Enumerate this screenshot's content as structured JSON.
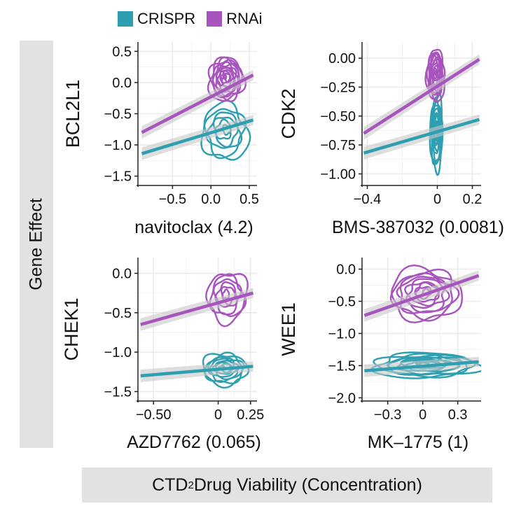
{
  "figure": {
    "y_strip_label": "Gene Effect",
    "x_strip_label_prefix": "CTD",
    "x_strip_label_sup": "2",
    "x_strip_label_suffix": " Drug Viability (Concentration)"
  },
  "legend": [
    {
      "name": "CRISPR",
      "color": "#2e9fb0"
    },
    {
      "name": "RNAi",
      "color": "#a755bd"
    }
  ],
  "colors": {
    "crispr": "#2e9fb0",
    "rnai": "#a755bd",
    "grid": "#ebebeb",
    "band": "#c8c8c8"
  },
  "chart_data": [
    {
      "type": "density-contour",
      "ylabel": "BCL2L1",
      "xlabel": "navitoclax (4.2)",
      "xlim": [
        -0.95,
        0.6
      ],
      "ylim": [
        -1.65,
        0.65
      ],
      "xticks": [
        -0.5,
        0.0,
        0.5
      ],
      "xtick_labels": [
        "-0.5",
        "0.0",
        "0.5"
      ],
      "yticks": [
        -1.5,
        -1.0,
        -0.5,
        0.0,
        0.5
      ],
      "ytick_labels": [
        "-1.5",
        "-1.0",
        "-0.5",
        "0.0",
        "0.5"
      ],
      "series": [
        {
          "name": "CRISPR",
          "center": [
            0.18,
            -0.8
          ],
          "spread": [
            0.3,
            0.45
          ],
          "levels": 6,
          "fit": {
            "x": [
              -0.9,
              0.55
            ],
            "y": [
              -1.14,
              -0.6
            ]
          }
        },
        {
          "name": "RNAi",
          "center": [
            0.2,
            0.05
          ],
          "spread": [
            0.22,
            0.35
          ],
          "levels": 11,
          "fit": {
            "x": [
              -0.9,
              0.55
            ],
            "y": [
              -0.8,
              0.12
            ]
          }
        }
      ]
    },
    {
      "type": "density-contour",
      "ylabel": "CDK2",
      "xlabel": "BMS-387032 (0.0081)",
      "xlim": [
        -0.43,
        0.25
      ],
      "ylim": [
        -1.1,
        0.14
      ],
      "xticks": [
        -0.4,
        0.0,
        0.2
      ],
      "xtick_labels": [
        "-0.4",
        "0",
        "0.2"
      ],
      "yticks": [
        -1.0,
        -0.75,
        -0.5,
        -0.25,
        0.0
      ],
      "ytick_labels": [
        "-1.00",
        "-0.75",
        "-0.50",
        "-0.25",
        "0.00"
      ],
      "series": [
        {
          "name": "CRISPR",
          "center": [
            -0.005,
            -0.65
          ],
          "spread": [
            0.035,
            0.32
          ],
          "levels": 8,
          "fit": {
            "x": [
              -0.42,
              0.24
            ],
            "y": [
              -0.82,
              -0.53
            ]
          }
        },
        {
          "name": "RNAi",
          "center": [
            -0.01,
            -0.15
          ],
          "spread": [
            0.05,
            0.22
          ],
          "levels": 10,
          "fit": {
            "x": [
              -0.42,
              0.24
            ],
            "y": [
              -0.65,
              -0.01
            ]
          }
        }
      ]
    },
    {
      "type": "density-contour",
      "ylabel": "CHEK1",
      "xlabel": "AZD7762 (0.065)",
      "xlim": [
        -0.62,
        0.3
      ],
      "ylim": [
        -1.62,
        0.2
      ],
      "xticks": [
        -0.5,
        0.0,
        0.25
      ],
      "xtick_labels": [
        "-0.50",
        "0",
        "0.25"
      ],
      "yticks": [
        -1.5,
        -1.0,
        -0.5,
        0.0
      ],
      "ytick_labels": [
        "-1.5",
        "-1.0",
        "-0.5",
        "0.0"
      ],
      "series": [
        {
          "name": "CRISPR",
          "center": [
            0.05,
            -1.22
          ],
          "spread": [
            0.17,
            0.2
          ],
          "levels": 8,
          "fit": {
            "x": [
              -0.6,
              0.27
            ],
            "y": [
              -1.3,
              -1.18
            ]
          }
        },
        {
          "name": "RNAi",
          "center": [
            0.07,
            -0.3
          ],
          "spread": [
            0.15,
            0.32
          ],
          "levels": 6,
          "fit": {
            "x": [
              -0.6,
              0.27
            ],
            "y": [
              -0.65,
              -0.25
            ]
          }
        }
      ]
    },
    {
      "type": "density-contour",
      "ylabel": "WEE1",
      "xlabel": "MK–1775 (1)",
      "xlim": [
        -0.52,
        0.5
      ],
      "ylim": [
        -2.05,
        0.18
      ],
      "xticks": [
        -0.3,
        0.0,
        0.3
      ],
      "xtick_labels": [
        "-0.3",
        "0",
        "0.3"
      ],
      "yticks": [
        -2.0,
        -1.5,
        -1.0,
        -0.5,
        0.0
      ],
      "ytick_labels": [
        "-2.0",
        "-1.5",
        "-1.0",
        "-0.5",
        "0.0"
      ],
      "series": [
        {
          "name": "CRISPR",
          "center": [
            0.03,
            -1.5
          ],
          "spread": [
            0.45,
            0.19
          ],
          "levels": 9,
          "fit": {
            "x": [
              -0.5,
              0.48
            ],
            "y": [
              -1.58,
              -1.44
            ]
          }
        },
        {
          "name": "RNAi",
          "center": [
            0.02,
            -0.4
          ],
          "spread": [
            0.3,
            0.4
          ],
          "levels": 9,
          "fit": {
            "x": [
              -0.5,
              0.48
            ],
            "y": [
              -0.72,
              -0.1
            ]
          }
        }
      ]
    }
  ]
}
